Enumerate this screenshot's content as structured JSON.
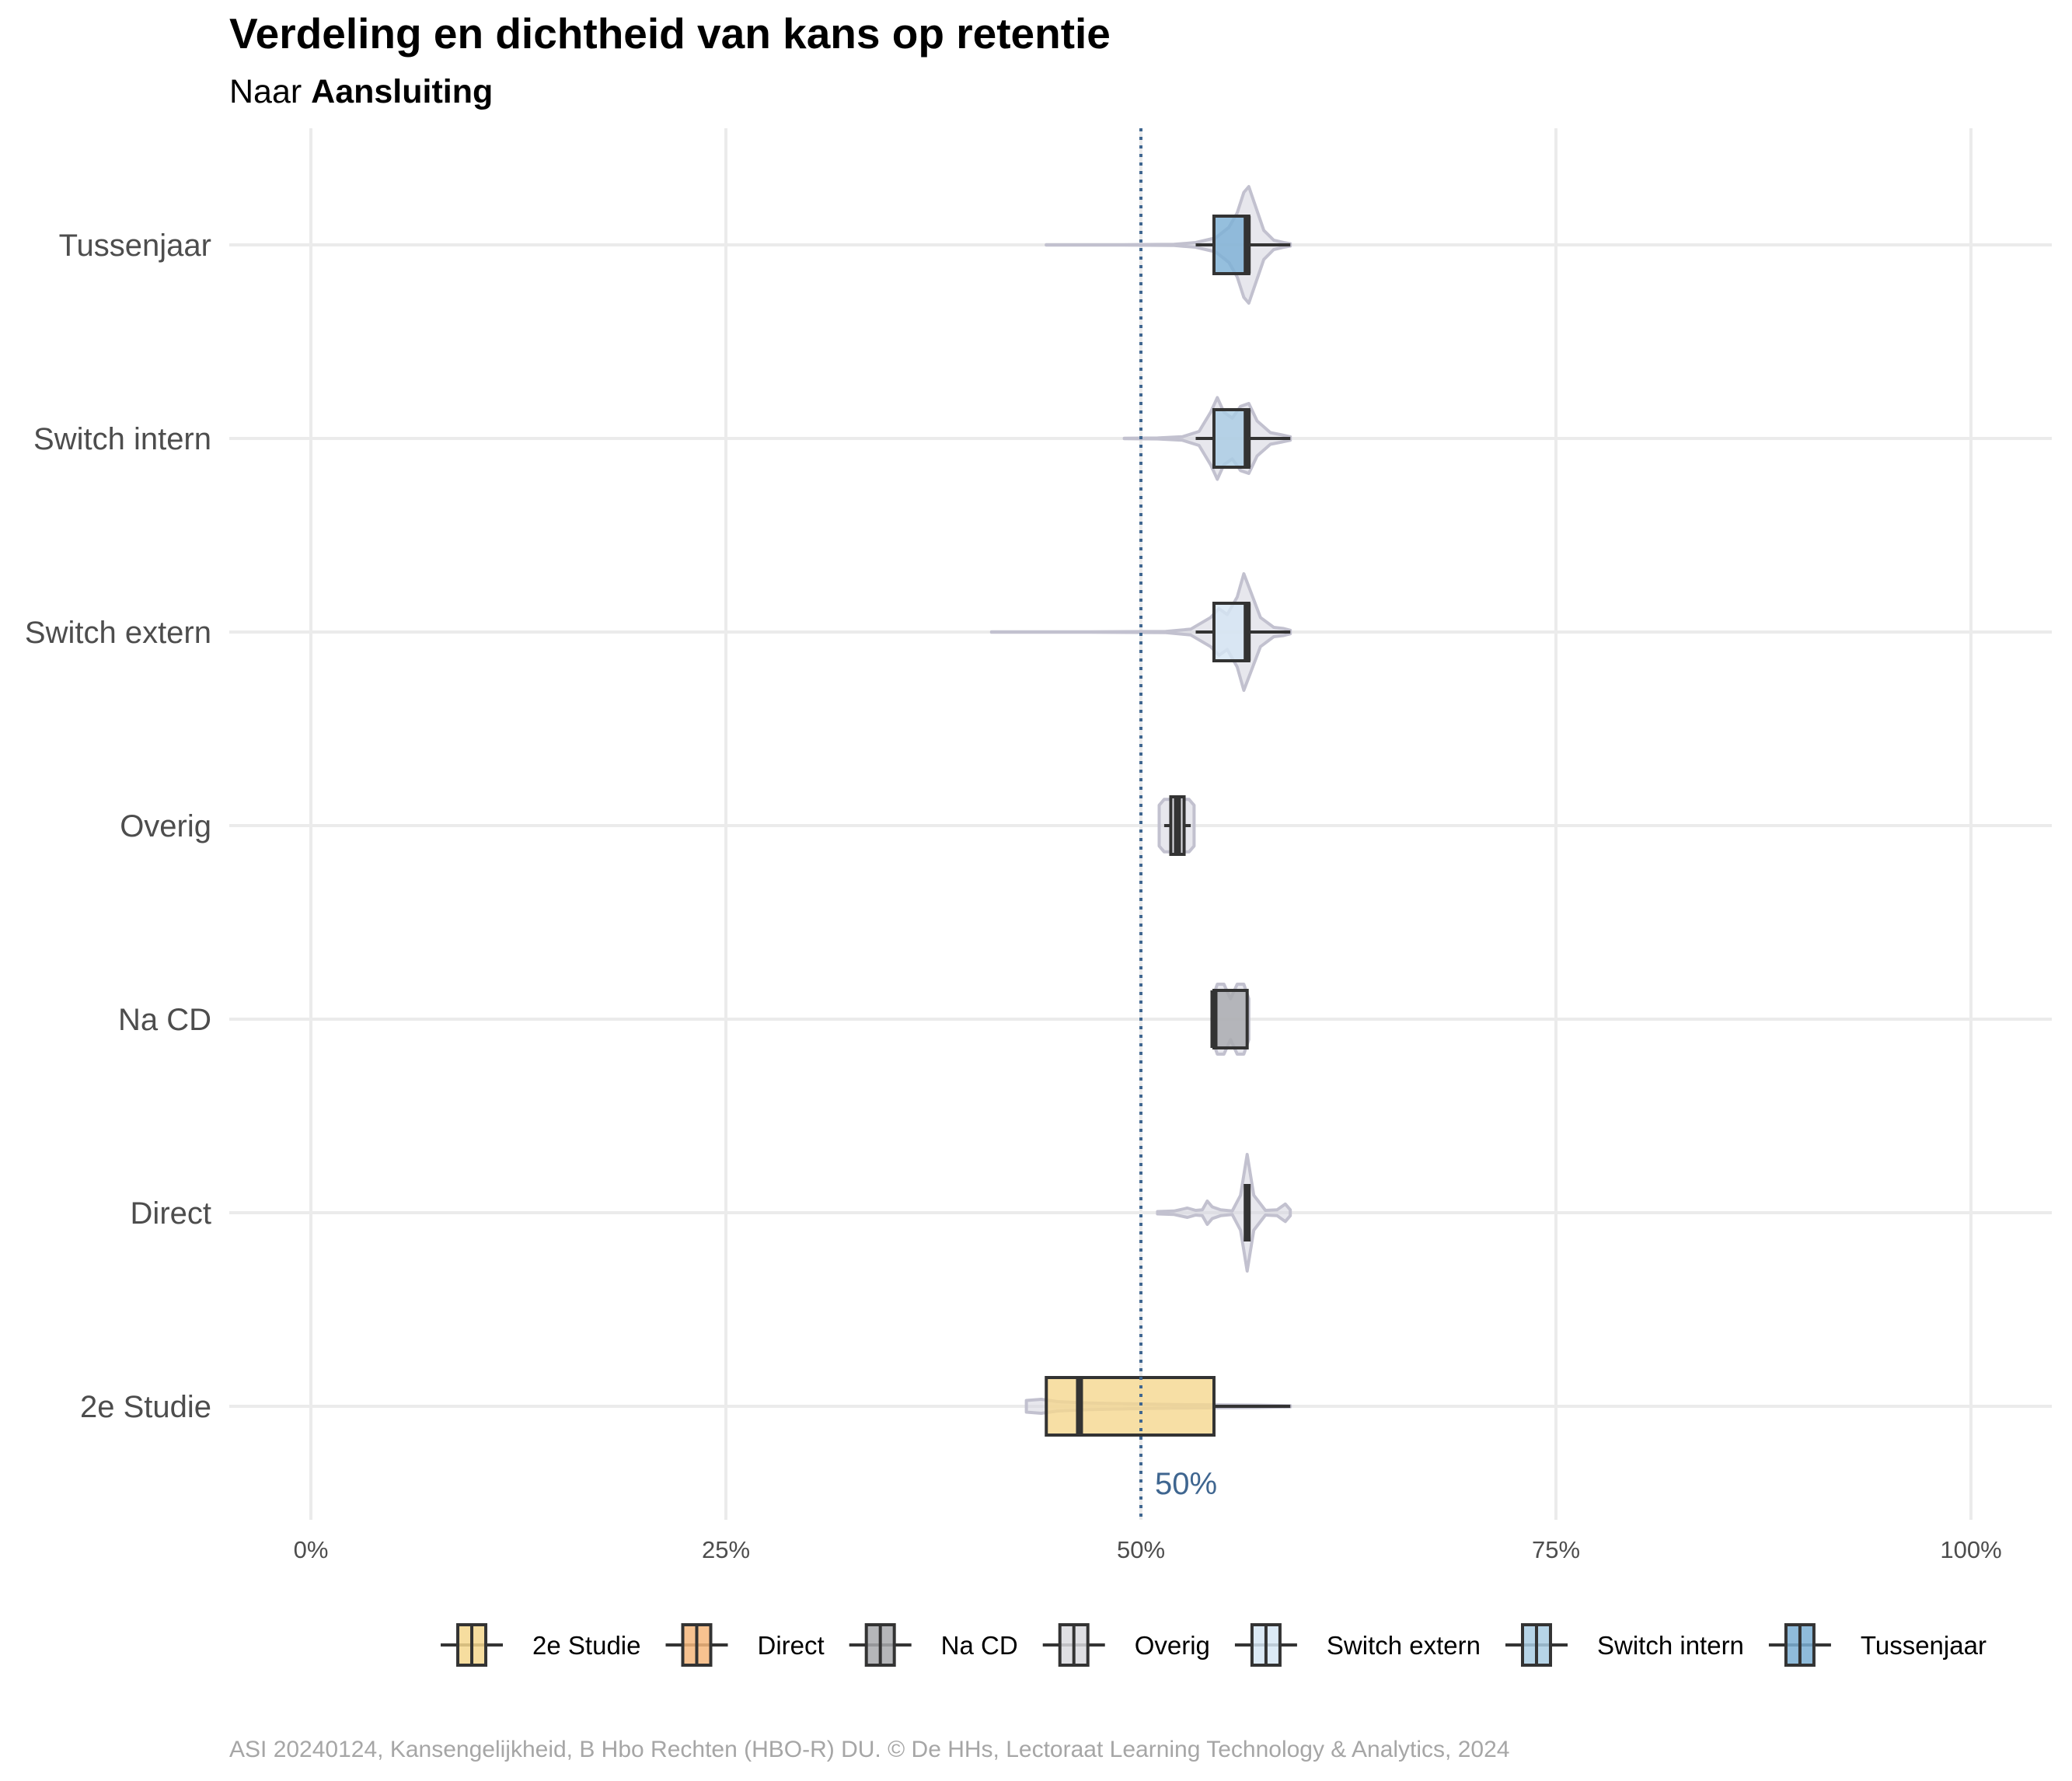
{
  "chart_data": {
    "type": "boxplot+violin",
    "title": "Verdeling en dichtheid van kans op retentie",
    "subtitle_prefix": "Naar ",
    "subtitle_bold": "Aansluiting",
    "xlim": [
      0,
      1
    ],
    "x_ticks": [
      {
        "value": 0,
        "label": "0%"
      },
      {
        "value": 0.25,
        "label": "25%"
      },
      {
        "value": 0.5,
        "label": "50%"
      },
      {
        "value": 0.75,
        "label": "75%"
      },
      {
        "value": 1,
        "label": "100%"
      }
    ],
    "reference_line": {
      "value": 0.5,
      "label": "50%",
      "color": "#3f6690"
    },
    "grid": true,
    "legend_position": "bottom",
    "categories": [
      {
        "name": "Tussenjaar",
        "fill": "#7BAFD4",
        "box": {
          "min": 0.533,
          "q1": 0.544,
          "median": 0.564,
          "q3": 0.565,
          "max": 0.59
        },
        "violin": {
          "min": 0.443,
          "max": 0.59,
          "density": [
            [
              0.443,
              0.003
            ],
            [
              0.49,
              0.003
            ],
            [
              0.52,
              0.01
            ],
            [
              0.533,
              0.04
            ],
            [
              0.545,
              0.12
            ],
            [
              0.553,
              0.3
            ],
            [
              0.558,
              0.55
            ],
            [
              0.562,
              0.9
            ],
            [
              0.565,
              1.0
            ],
            [
              0.568,
              0.75
            ],
            [
              0.574,
              0.25
            ],
            [
              0.58,
              0.08
            ],
            [
              0.586,
              0.04
            ],
            [
              0.59,
              0.02
            ]
          ]
        }
      },
      {
        "name": "Switch intern",
        "fill": "#A9CCE3",
        "box": {
          "min": 0.533,
          "q1": 0.544,
          "median": 0.564,
          "q3": 0.565,
          "max": 0.59
        },
        "violin": {
          "min": 0.49,
          "max": 0.59,
          "density": [
            [
              0.49,
              0.004
            ],
            [
              0.51,
              0.008
            ],
            [
              0.525,
              0.03
            ],
            [
              0.535,
              0.12
            ],
            [
              0.542,
              0.45
            ],
            [
              0.546,
              0.7
            ],
            [
              0.55,
              0.45
            ],
            [
              0.555,
              0.35
            ],
            [
              0.56,
              0.55
            ],
            [
              0.565,
              0.6
            ],
            [
              0.57,
              0.3
            ],
            [
              0.578,
              0.1
            ],
            [
              0.585,
              0.06
            ],
            [
              0.59,
              0.03
            ]
          ]
        }
      },
      {
        "name": "Switch extern",
        "fill": "#D6E6F4",
        "box": {
          "min": 0.533,
          "q1": 0.544,
          "median": 0.564,
          "q3": 0.565,
          "max": 0.59
        },
        "violin": {
          "min": 0.41,
          "max": 0.59,
          "density": [
            [
              0.41,
              0.003
            ],
            [
              0.47,
              0.004
            ],
            [
              0.515,
              0.01
            ],
            [
              0.53,
              0.05
            ],
            [
              0.542,
              0.25
            ],
            [
              0.547,
              0.4
            ],
            [
              0.552,
              0.3
            ],
            [
              0.558,
              0.6
            ],
            [
              0.562,
              1.0
            ],
            [
              0.566,
              0.7
            ],
            [
              0.572,
              0.25
            ],
            [
              0.58,
              0.08
            ],
            [
              0.586,
              0.06
            ],
            [
              0.59,
              0.03
            ]
          ]
        }
      },
      {
        "name": "Overig",
        "fill": "#D9D9DE",
        "box": {
          "min": 0.514,
          "q1": 0.518,
          "median": 0.522,
          "q3": 0.526,
          "max": 0.53
        },
        "violin": {
          "min": 0.511,
          "max": 0.532,
          "density": [
            [
              0.511,
              0.35
            ],
            [
              0.514,
              0.45
            ],
            [
              0.518,
              0.45
            ],
            [
              0.522,
              0.45
            ],
            [
              0.526,
              0.45
            ],
            [
              0.529,
              0.45
            ],
            [
              0.532,
              0.35
            ]
          ]
        }
      },
      {
        "name": "Na CD",
        "fill": "#A8A9AD",
        "box": {
          "min": 0.543,
          "q1": 0.544,
          "median": 0.544,
          "q3": 0.564,
          "max": 0.564
        },
        "violin": {
          "min": 0.543,
          "max": 0.565,
          "density": [
            [
              0.543,
              0.35
            ],
            [
              0.546,
              0.6
            ],
            [
              0.55,
              0.6
            ],
            [
              0.554,
              0.35
            ],
            [
              0.558,
              0.6
            ],
            [
              0.562,
              0.6
            ],
            [
              0.565,
              0.35
            ]
          ]
        }
      },
      {
        "name": "Direct",
        "fill": "#F6B77D",
        "box": {
          "min": 0.564,
          "q1": 0.564,
          "median": 0.564,
          "q3": 0.564,
          "max": 0.564
        },
        "violin": {
          "min": 0.51,
          "max": 0.59,
          "density": [
            [
              0.51,
              0.02
            ],
            [
              0.52,
              0.03
            ],
            [
              0.528,
              0.08
            ],
            [
              0.533,
              0.04
            ],
            [
              0.537,
              0.05
            ],
            [
              0.54,
              0.2
            ],
            [
              0.543,
              0.1
            ],
            [
              0.548,
              0.05
            ],
            [
              0.555,
              0.03
            ],
            [
              0.56,
              0.3
            ],
            [
              0.564,
              1.0
            ],
            [
              0.568,
              0.3
            ],
            [
              0.575,
              0.04
            ],
            [
              0.582,
              0.05
            ],
            [
              0.587,
              0.15
            ],
            [
              0.59,
              0.05
            ]
          ]
        }
      },
      {
        "name": "2e Studie",
        "fill": "#F5D78E",
        "box": {
          "min": 0.443,
          "q1": 0.443,
          "median": 0.463,
          "q3": 0.544,
          "max": 0.59
        },
        "violin": {
          "min": 0.431,
          "max": 0.59,
          "density": [
            [
              0.431,
              0.1
            ],
            [
              0.44,
              0.12
            ],
            [
              0.45,
              0.08
            ],
            [
              0.465,
              0.06
            ],
            [
              0.48,
              0.05
            ],
            [
              0.5,
              0.04
            ],
            [
              0.52,
              0.03
            ],
            [
              0.545,
              0.025
            ],
            [
              0.57,
              0.02
            ],
            [
              0.59,
              0.01
            ]
          ]
        }
      }
    ],
    "legend": [
      {
        "name": "2e Studie",
        "fill": "#F5D78E"
      },
      {
        "name": "Direct",
        "fill": "#F6B77D"
      },
      {
        "name": "Na CD",
        "fill": "#A8A9AD"
      },
      {
        "name": "Overig",
        "fill": "#D9D9DE"
      },
      {
        "name": "Switch extern",
        "fill": "#D6E6F4"
      },
      {
        "name": "Switch intern",
        "fill": "#A9CCE3"
      },
      {
        "name": "Tussenjaar",
        "fill": "#7BAFD4"
      }
    ],
    "caption": "ASI 20240124, Kansengelijkheid, B Hbo Rechten (HBO-R) DU. © De HHs, Lectoraat Learning Technology & Analytics, 2024"
  }
}
